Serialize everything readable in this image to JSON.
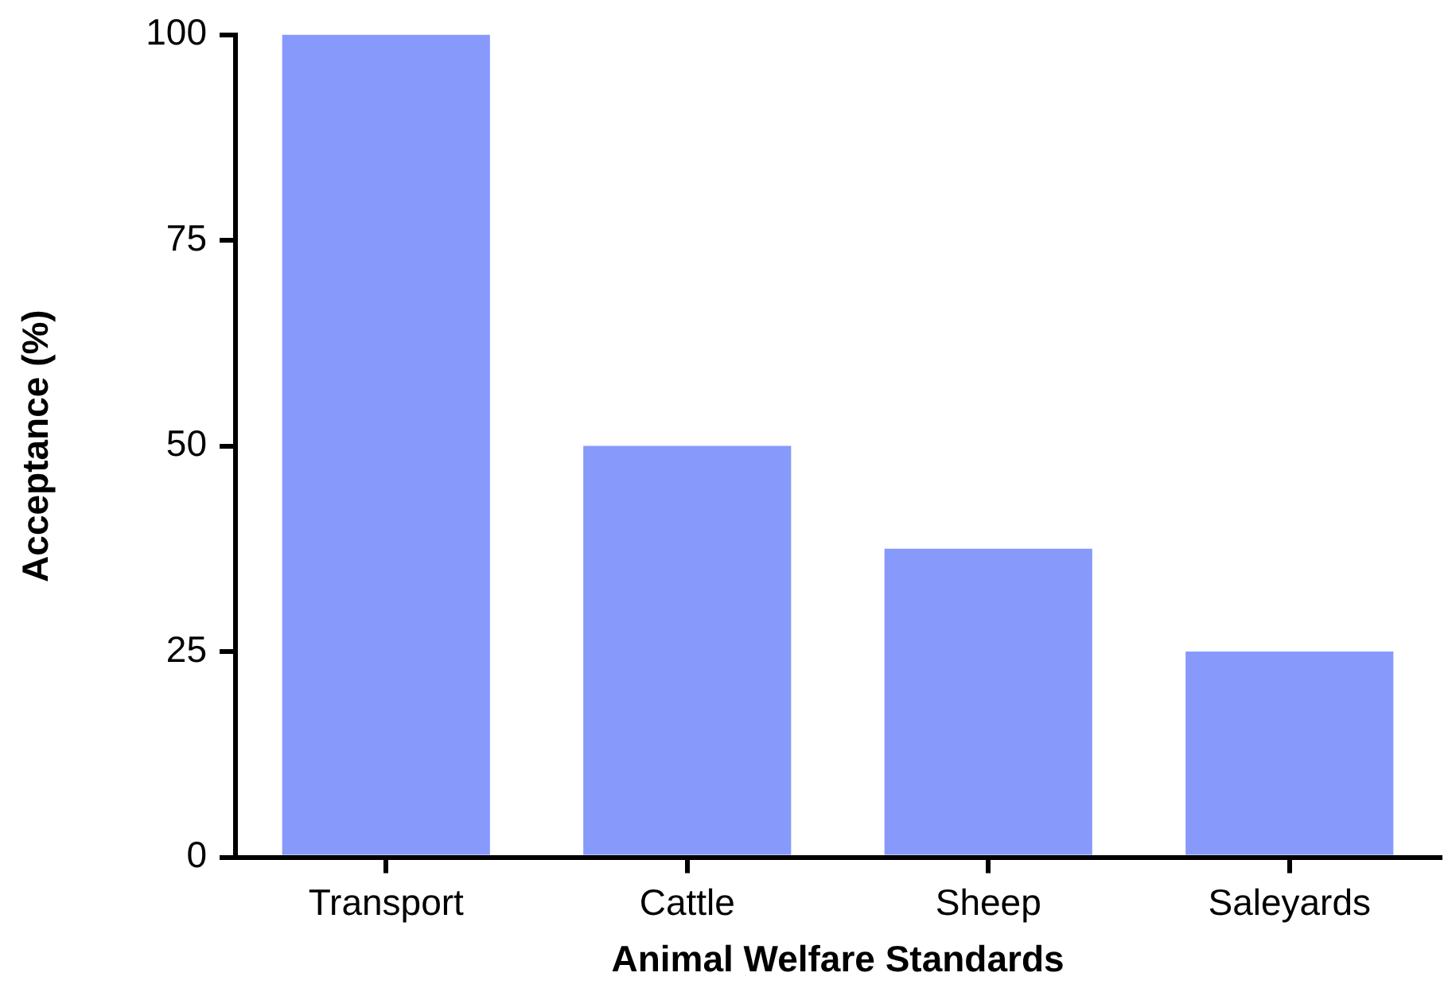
{
  "chart_data": {
    "type": "bar",
    "xlabel": "Animal Welfare Standards",
    "ylabel": "Acceptance (%)",
    "categories": [
      "Transport",
      "Cattle",
      "Sheep",
      "Saleyards"
    ],
    "values": [
      100,
      50,
      37.5,
      25
    ],
    "color": "#8899fc",
    "ylim": [
      0,
      100
    ],
    "yticks": [
      0,
      25,
      50,
      75,
      100
    ],
    "grid": false,
    "legend": false
  }
}
